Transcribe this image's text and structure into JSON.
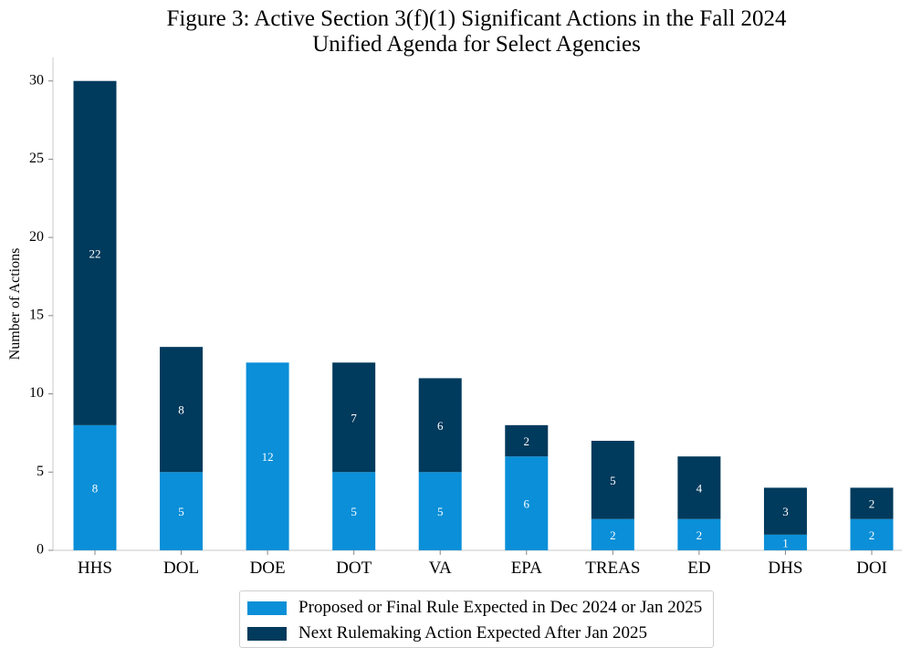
{
  "colors": {
    "proposed": "#0a8fd8",
    "next": "#003a5c"
  },
  "chart_data": {
    "type": "bar",
    "stacked": true,
    "title": "Figure 3: Active Section 3(f)(1) Significant Actions in the Fall 2024 Unified Agenda for Select Agencies",
    "title_lines": [
      "Figure 3: Active Section 3(f)(1) Significant Actions in the Fall 2024",
      "Unified Agenda for Select Agencies"
    ],
    "xlabel": "",
    "ylabel": "Number of Actions",
    "ylim": [
      0,
      31.5
    ],
    "yticks": [
      0,
      5,
      10,
      15,
      20,
      25,
      30
    ],
    "categories": [
      "HHS",
      "DOL",
      "DOE",
      "DOT",
      "VA",
      "EPA",
      "TREAS",
      "ED",
      "DHS",
      "DOI"
    ],
    "series": [
      {
        "name": "Proposed or Final Rule Expected in Dec 2024 or Jan 2025",
        "values": [
          8,
          5,
          12,
          5,
          5,
          6,
          2,
          2,
          1,
          2
        ]
      },
      {
        "name": "Next Rulemaking Action Expected After Jan 2025",
        "values": [
          22,
          8,
          0,
          7,
          6,
          2,
          5,
          4,
          3,
          2
        ]
      }
    ],
    "grid": false,
    "legend_position": "bottom"
  }
}
